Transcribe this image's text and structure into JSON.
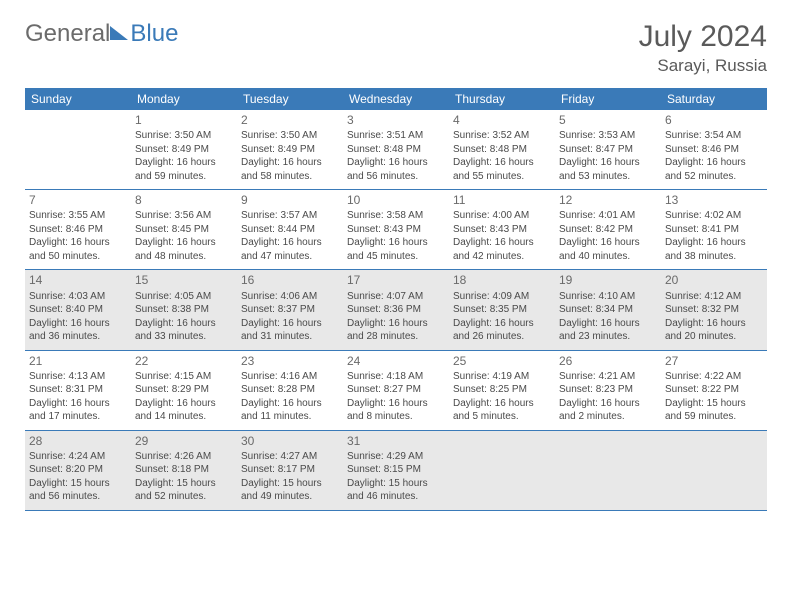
{
  "logo": {
    "part1": "General",
    "part2": "Blue"
  },
  "title": "July 2024",
  "location": "Sarayi, Russia",
  "weekdays": [
    "Sunday",
    "Monday",
    "Tuesday",
    "Wednesday",
    "Thursday",
    "Friday",
    "Saturday"
  ],
  "colors": {
    "header_bg": "#3a7ab8",
    "shaded_bg": "#e8e8e8",
    "text": "#4a4a4a",
    "title_text": "#5a5a5a"
  },
  "weeks": [
    [
      {
        "n": "",
        "lines": []
      },
      {
        "n": "1",
        "lines": [
          "Sunrise: 3:50 AM",
          "Sunset: 8:49 PM",
          "Daylight: 16 hours",
          "and 59 minutes."
        ]
      },
      {
        "n": "2",
        "lines": [
          "Sunrise: 3:50 AM",
          "Sunset: 8:49 PM",
          "Daylight: 16 hours",
          "and 58 minutes."
        ]
      },
      {
        "n": "3",
        "lines": [
          "Sunrise: 3:51 AM",
          "Sunset: 8:48 PM",
          "Daylight: 16 hours",
          "and 56 minutes."
        ]
      },
      {
        "n": "4",
        "lines": [
          "Sunrise: 3:52 AM",
          "Sunset: 8:48 PM",
          "Daylight: 16 hours",
          "and 55 minutes."
        ]
      },
      {
        "n": "5",
        "lines": [
          "Sunrise: 3:53 AM",
          "Sunset: 8:47 PM",
          "Daylight: 16 hours",
          "and 53 minutes."
        ]
      },
      {
        "n": "6",
        "lines": [
          "Sunrise: 3:54 AM",
          "Sunset: 8:46 PM",
          "Daylight: 16 hours",
          "and 52 minutes."
        ]
      }
    ],
    [
      {
        "n": "7",
        "lines": [
          "Sunrise: 3:55 AM",
          "Sunset: 8:46 PM",
          "Daylight: 16 hours",
          "and 50 minutes."
        ]
      },
      {
        "n": "8",
        "lines": [
          "Sunrise: 3:56 AM",
          "Sunset: 8:45 PM",
          "Daylight: 16 hours",
          "and 48 minutes."
        ]
      },
      {
        "n": "9",
        "lines": [
          "Sunrise: 3:57 AM",
          "Sunset: 8:44 PM",
          "Daylight: 16 hours",
          "and 47 minutes."
        ]
      },
      {
        "n": "10",
        "lines": [
          "Sunrise: 3:58 AM",
          "Sunset: 8:43 PM",
          "Daylight: 16 hours",
          "and 45 minutes."
        ]
      },
      {
        "n": "11",
        "lines": [
          "Sunrise: 4:00 AM",
          "Sunset: 8:43 PM",
          "Daylight: 16 hours",
          "and 42 minutes."
        ]
      },
      {
        "n": "12",
        "lines": [
          "Sunrise: 4:01 AM",
          "Sunset: 8:42 PM",
          "Daylight: 16 hours",
          "and 40 minutes."
        ]
      },
      {
        "n": "13",
        "lines": [
          "Sunrise: 4:02 AM",
          "Sunset: 8:41 PM",
          "Daylight: 16 hours",
          "and 38 minutes."
        ]
      }
    ],
    [
      {
        "n": "14",
        "lines": [
          "Sunrise: 4:03 AM",
          "Sunset: 8:40 PM",
          "Daylight: 16 hours",
          "and 36 minutes."
        ]
      },
      {
        "n": "15",
        "lines": [
          "Sunrise: 4:05 AM",
          "Sunset: 8:38 PM",
          "Daylight: 16 hours",
          "and 33 minutes."
        ]
      },
      {
        "n": "16",
        "lines": [
          "Sunrise: 4:06 AM",
          "Sunset: 8:37 PM",
          "Daylight: 16 hours",
          "and 31 minutes."
        ]
      },
      {
        "n": "17",
        "lines": [
          "Sunrise: 4:07 AM",
          "Sunset: 8:36 PM",
          "Daylight: 16 hours",
          "and 28 minutes."
        ]
      },
      {
        "n": "18",
        "lines": [
          "Sunrise: 4:09 AM",
          "Sunset: 8:35 PM",
          "Daylight: 16 hours",
          "and 26 minutes."
        ]
      },
      {
        "n": "19",
        "lines": [
          "Sunrise: 4:10 AM",
          "Sunset: 8:34 PM",
          "Daylight: 16 hours",
          "and 23 minutes."
        ]
      },
      {
        "n": "20",
        "lines": [
          "Sunrise: 4:12 AM",
          "Sunset: 8:32 PM",
          "Daylight: 16 hours",
          "and 20 minutes."
        ]
      }
    ],
    [
      {
        "n": "21",
        "lines": [
          "Sunrise: 4:13 AM",
          "Sunset: 8:31 PM",
          "Daylight: 16 hours",
          "and 17 minutes."
        ]
      },
      {
        "n": "22",
        "lines": [
          "Sunrise: 4:15 AM",
          "Sunset: 8:29 PM",
          "Daylight: 16 hours",
          "and 14 minutes."
        ]
      },
      {
        "n": "23",
        "lines": [
          "Sunrise: 4:16 AM",
          "Sunset: 8:28 PM",
          "Daylight: 16 hours",
          "and 11 minutes."
        ]
      },
      {
        "n": "24",
        "lines": [
          "Sunrise: 4:18 AM",
          "Sunset: 8:27 PM",
          "Daylight: 16 hours",
          "and 8 minutes."
        ]
      },
      {
        "n": "25",
        "lines": [
          "Sunrise: 4:19 AM",
          "Sunset: 8:25 PM",
          "Daylight: 16 hours",
          "and 5 minutes."
        ]
      },
      {
        "n": "26",
        "lines": [
          "Sunrise: 4:21 AM",
          "Sunset: 8:23 PM",
          "Daylight: 16 hours",
          "and 2 minutes."
        ]
      },
      {
        "n": "27",
        "lines": [
          "Sunrise: 4:22 AM",
          "Sunset: 8:22 PM",
          "Daylight: 15 hours",
          "and 59 minutes."
        ]
      }
    ],
    [
      {
        "n": "28",
        "lines": [
          "Sunrise: 4:24 AM",
          "Sunset: 8:20 PM",
          "Daylight: 15 hours",
          "and 56 minutes."
        ]
      },
      {
        "n": "29",
        "lines": [
          "Sunrise: 4:26 AM",
          "Sunset: 8:18 PM",
          "Daylight: 15 hours",
          "and 52 minutes."
        ]
      },
      {
        "n": "30",
        "lines": [
          "Sunrise: 4:27 AM",
          "Sunset: 8:17 PM",
          "Daylight: 15 hours",
          "and 49 minutes."
        ]
      },
      {
        "n": "31",
        "lines": [
          "Sunrise: 4:29 AM",
          "Sunset: 8:15 PM",
          "Daylight: 15 hours",
          "and 46 minutes."
        ]
      },
      {
        "n": "",
        "lines": []
      },
      {
        "n": "",
        "lines": []
      },
      {
        "n": "",
        "lines": []
      }
    ]
  ],
  "shaded_weeks": [
    2,
    4
  ]
}
